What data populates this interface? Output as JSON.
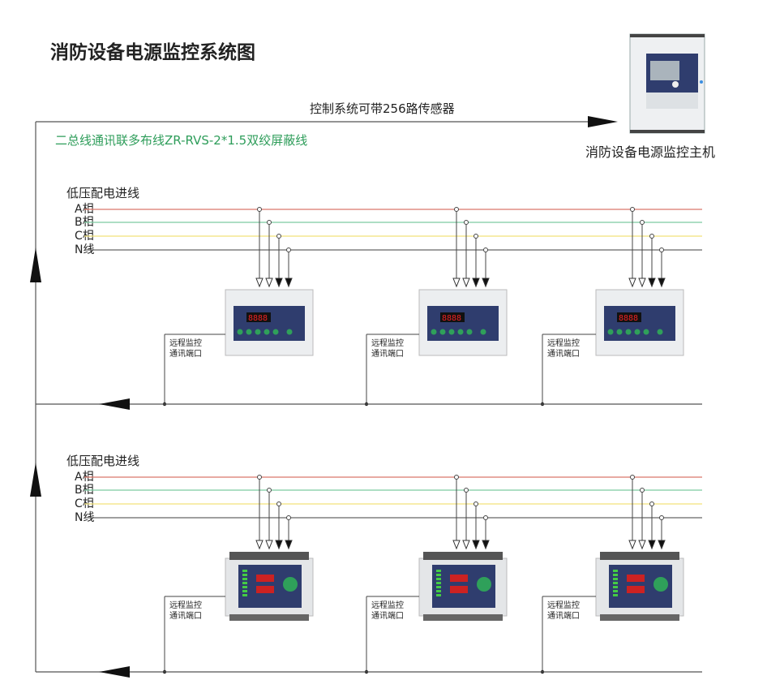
{
  "title": "消防设备电源监控系统图",
  "top_bus_label": "控制系统可带256路传感器",
  "cable_label": "二总线通讯联多布线ZR-RVS-2*1.5双绞屏蔽线",
  "host": {
    "label": "消防设备电源监控主机"
  },
  "groups": [
    {
      "heading": "低压配电进线",
      "lines": [
        {
          "label": "A相",
          "color": "#d9776a"
        },
        {
          "label": "B相",
          "color": "#7cc9a0"
        },
        {
          "label": "C相",
          "color": "#f2e27a"
        },
        {
          "label": "N线",
          "color": "#666666"
        }
      ],
      "port_label_1": "远程监控",
      "port_label_2": "通讯端口",
      "device_type": "din-rail-monitor"
    },
    {
      "heading": "低压配电进线",
      "lines": [
        {
          "label": "A相",
          "color": "#d9776a"
        },
        {
          "label": "B相",
          "color": "#7cc9a0"
        },
        {
          "label": "C相",
          "color": "#f2e27a"
        },
        {
          "label": "N线",
          "color": "#666666"
        }
      ],
      "port_label_1": "远程监控",
      "port_label_2": "通讯端口",
      "device_type": "voltage-current-sensor"
    }
  ],
  "colors": {
    "cable_label": "#2e9d5a",
    "panel": "#2f3d6e",
    "display": "#d0202a",
    "button": "#2fa05a"
  }
}
